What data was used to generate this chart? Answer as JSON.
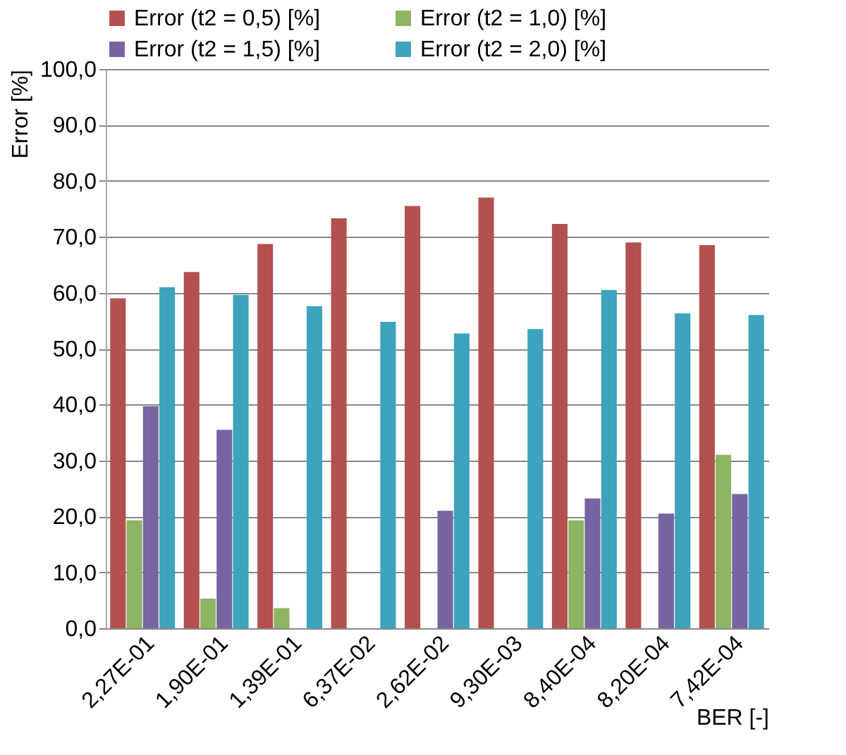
{
  "chart_data": {
    "type": "bar",
    "xlabel": "BER [-]",
    "ylabel": "Error [%]",
    "categories": [
      "2,27E-01",
      "1,90E-01",
      "1,39E-01",
      "6,37E-02",
      "2,62E-02",
      "9,30E-03",
      "8,40E-04",
      "8,20E-04",
      "7,42E-04"
    ],
    "series": [
      {
        "name": "Error (t2 = 0,5) [%]",
        "color": "#b3514f",
        "values": [
          59.0,
          63.7,
          68.7,
          73.3,
          75.5,
          77.0,
          72.3,
          69.0,
          68.5
        ]
      },
      {
        "name": "Error (t2 = 1,0) [%]",
        "color": "#8db562",
        "values": [
          19.3,
          5.3,
          3.6,
          null,
          null,
          null,
          19.3,
          null,
          31.0
        ]
      },
      {
        "name": "Error (t2 = 1,5) [%]",
        "color": "#7864a1",
        "values": [
          39.7,
          35.5,
          null,
          null,
          21.0,
          null,
          23.2,
          20.5,
          24.0
        ]
      },
      {
        "name": "Error (t2 = 2,0) [%]",
        "color": "#3ea3bd",
        "values": [
          61.0,
          59.6,
          57.6,
          54.8,
          52.7,
          53.5,
          60.5,
          56.3,
          56.0
        ]
      }
    ],
    "ylim": [
      0,
      100
    ],
    "yticks": [
      {
        "value": 0,
        "label": "0,0"
      },
      {
        "value": 10,
        "label": "10,0"
      },
      {
        "value": 20,
        "label": "20,0"
      },
      {
        "value": 30,
        "label": "30,0"
      },
      {
        "value": 40,
        "label": "40,0"
      },
      {
        "value": 50,
        "label": "50,0"
      },
      {
        "value": 60,
        "label": "60,0"
      },
      {
        "value": 70,
        "label": "70,0"
      },
      {
        "value": 80,
        "label": "80,0"
      },
      {
        "value": 90,
        "label": "90,0"
      },
      {
        "value": 100,
        "label": "100,0"
      }
    ],
    "grid": "y",
    "legend": "top"
  }
}
